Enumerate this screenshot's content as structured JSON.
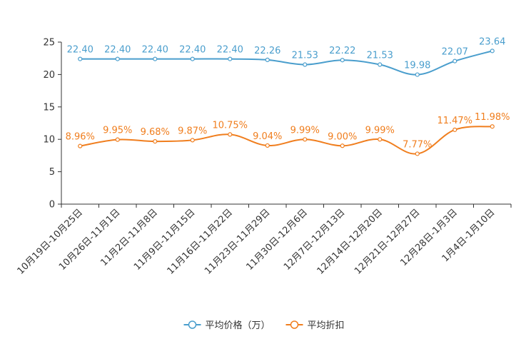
{
  "chart_data": {
    "type": "line",
    "title": "",
    "xlabel": "",
    "ylabel": "",
    "ylim": [
      0,
      25
    ],
    "yticks": [
      0,
      5,
      10,
      15,
      20,
      25
    ],
    "grid": false,
    "legend_position": "bottom-center",
    "categories": [
      "10月19日-10月25日",
      "10月26日-11月1日",
      "11月2日-11月8日",
      "11月9日-11月15日",
      "11月16日-11月22日",
      "11月23日-11月29日",
      "11月30日-12月6日",
      "12月7日-12月13日",
      "12月14日-12月20日",
      "12月21日-12月27日",
      "12月28日-1月3日",
      "1月4日-1月10日"
    ],
    "series": [
      {
        "name": "平均价格（万）",
        "color": "#4a9ecd",
        "values": [
          22.4,
          22.4,
          22.4,
          22.4,
          22.4,
          22.26,
          21.53,
          22.22,
          21.53,
          19.98,
          22.07,
          23.64
        ],
        "labels": [
          "22.40",
          "22.40",
          "22.40",
          "22.40",
          "22.40",
          "22.26",
          "21.53",
          "22.22",
          "21.53",
          "19.98",
          "22.07",
          "23.64"
        ]
      },
      {
        "name": "平均折扣",
        "color": "#f07e1e",
        "values": [
          8.96,
          9.95,
          9.68,
          9.87,
          10.75,
          9.04,
          9.99,
          9.0,
          9.99,
          7.77,
          11.47,
          11.98
        ],
        "labels": [
          "8.96%",
          "9.95%",
          "9.68%",
          "9.87%",
          "10.75%",
          "9.04%",
          "9.99%",
          "9.00%",
          "9.99%",
          "7.77%",
          "11.47%",
          "11.98%"
        ]
      }
    ]
  }
}
